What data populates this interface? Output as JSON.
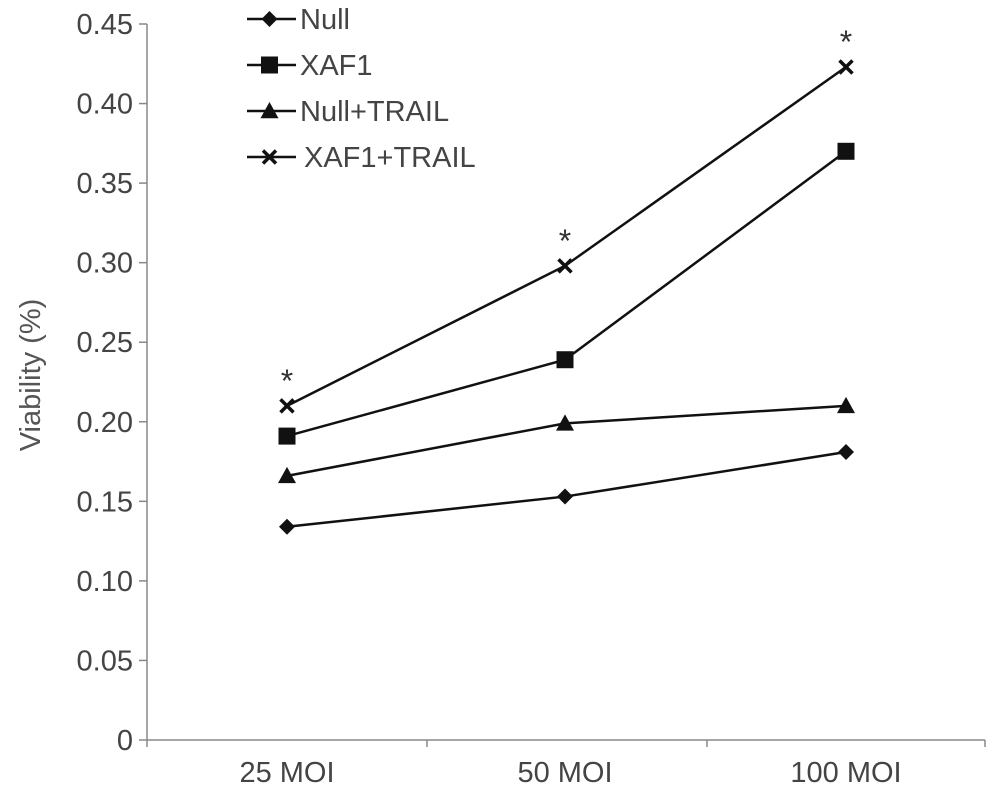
{
  "chart_data": {
    "type": "line",
    "title": "",
    "xlabel": "",
    "ylabel": "Viability  (%)",
    "categories": [
      "25 MOI",
      "50 MOI",
      "100 MOI"
    ],
    "yticks": [
      "0",
      "0.05",
      "0.10",
      "0.15",
      "0.20",
      "0.25",
      "0.30",
      "0.35",
      "0.40",
      "0.45"
    ],
    "ylim": [
      0,
      0.45
    ],
    "grid": false,
    "legend_position": "top-left",
    "series": [
      {
        "name": "Null",
        "marker": "diamond",
        "color": "#111111",
        "values": [
          0.134,
          0.153,
          0.181
        ]
      },
      {
        "name": "XAF1",
        "marker": "square",
        "color": "#111111",
        "values": [
          0.191,
          0.239,
          0.37
        ]
      },
      {
        "name": "Null+TRAIL",
        "marker": "triangle",
        "color": "#111111",
        "values": [
          0.166,
          0.199,
          0.21
        ]
      },
      {
        "name": "XAF1+TRAIL",
        "marker": "x",
        "color": "#111111",
        "values": [
          0.21,
          0.298,
          0.423
        ]
      }
    ],
    "annotations": [
      {
        "text": "*",
        "category": "25 MOI",
        "value": 0.21
      },
      {
        "text": "*",
        "category": "50 MOI",
        "value": 0.298
      },
      {
        "text": "*",
        "category": "100 MOI",
        "value": 0.423
      }
    ]
  }
}
